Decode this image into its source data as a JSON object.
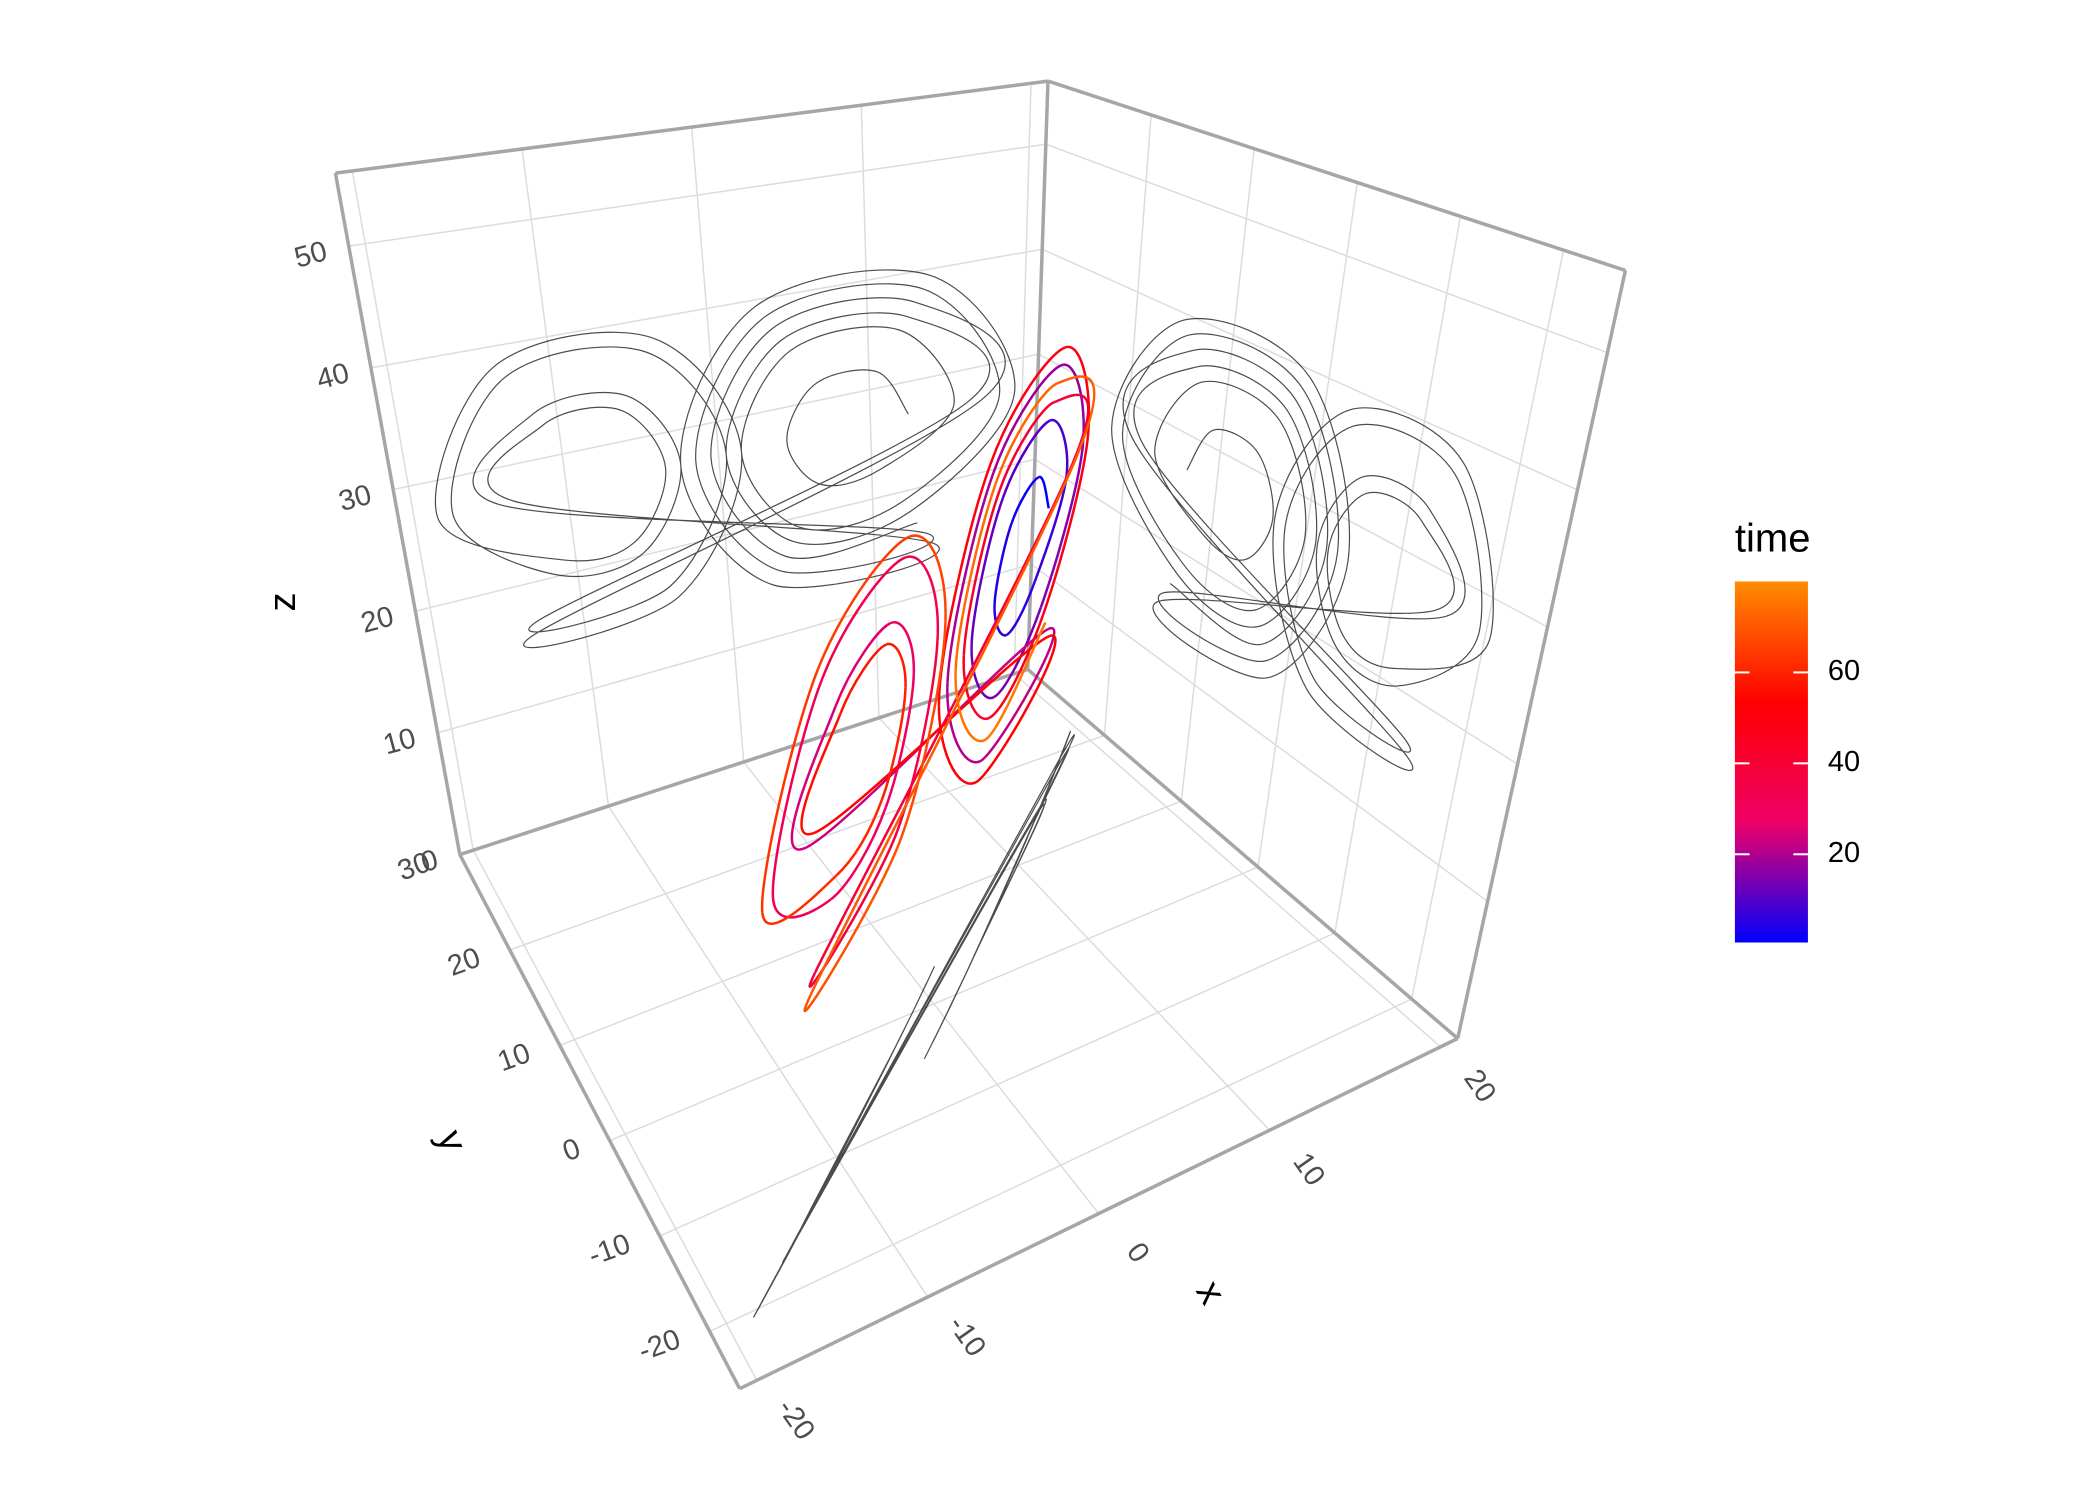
{
  "chart_data": {
    "type": "line3d",
    "x": [
      12.5,
      10.5,
      6.5,
      4.5,
      6.5,
      10.5,
      15.5,
      12,
      5,
      1.5,
      5,
      12,
      18.5,
      13.5,
      3.5,
      -1.5,
      3.5,
      13.5,
      -14.5,
      -11.5,
      -5.5,
      -2.5,
      -5.5,
      -11.5,
      -17.5,
      -13,
      -4,
      0.5,
      -4,
      -13,
      16.5,
      12.5,
      4.5,
      0.5,
      4.5,
      12.5,
      19.5,
      14,
      3,
      -2.5,
      3,
      14,
      -13.5,
      -11,
      -6,
      -3.5,
      -6,
      -11,
      -18.5,
      -13.5,
      -3.5,
      1.5,
      -3.5,
      -13.5,
      17.5,
      13,
      4,
      -0.5,
      4,
      13
    ],
    "y": [
      13.3,
      10.9,
      6.1,
      3.7,
      6.1,
      10.9,
      16.9,
      12.7,
      4.3,
      0.1,
      4.3,
      12.7,
      20.5,
      14.5,
      2.5,
      -3.5,
      2.5,
      14.5,
      -15.7,
      -12.1,
      -4.9,
      -1.3,
      -4.9,
      -12.1,
      -19.3,
      -13.9,
      -3.1,
      2.3,
      -3.1,
      -13.9,
      18.1,
      13.3,
      3.7,
      -1.1,
      3.7,
      13.3,
      21.7,
      15.1,
      1.9,
      -4.7,
      1.9,
      15.1,
      -14.5,
      -11.5,
      -5.5,
      -2.5,
      -5.5,
      -11.5,
      -20.5,
      -14.5,
      -2.5,
      3.5,
      -2.5,
      -14.5,
      19.3,
      13.9,
      3.1,
      -2.3,
      3.1,
      13.9
    ],
    "z": [
      27,
      31.5,
      31.5,
      27,
      22.5,
      22.5,
      27,
      34.9,
      34.9,
      27,
      19.1,
      19.1,
      27,
      38.3,
      38.3,
      27,
      15.7,
      15.7,
      27,
      33.8,
      33.8,
      27,
      20.2,
      20.2,
      27,
      37.2,
      37.2,
      27,
      16.8,
      16.8,
      27,
      36,
      36,
      27,
      18,
      18,
      27,
      39.4,
      39.4,
      27,
      14.6,
      14.6,
      27,
      32.7,
      32.7,
      27,
      21.3,
      21.3,
      27,
      38.3,
      38.3,
      27,
      15.7,
      15.7,
      27,
      37.2,
      37.2,
      27,
      16.8,
      16.8
    ],
    "time": [
      1,
      2.3,
      3.6,
      4.9,
      6.2,
      7.5,
      8.8,
      10.1,
      11.4,
      12.7,
      14,
      15.3,
      16.6,
      17.9,
      19.2,
      20.5,
      21.8,
      23.1,
      24.4,
      25.7,
      27,
      28.3,
      29.6,
      30.9,
      32.2,
      33.5,
      34.8,
      36.1,
      37.4,
      38.7,
      40,
      41.3,
      42.6,
      43.9,
      45.2,
      46.5,
      47.8,
      49.1,
      50.4,
      51.7,
      53,
      54.3,
      55.6,
      56.9,
      58.2,
      59.5,
      60.8,
      62.1,
      63.4,
      64.7,
      66,
      67.3,
      68.6,
      69.9,
      71.2,
      72.5,
      73.8,
      75.1,
      76.4,
      77.7
    ],
    "xlabel": "x",
    "ylabel": "y",
    "zlabel": "z",
    "xlim": [
      -21,
      21
    ],
    "ylim": [
      -26,
      30
    ],
    "zlim": [
      0,
      56
    ],
    "xticks": [
      -20,
      -10,
      0,
      10,
      20
    ],
    "yticks": [
      -20,
      -10,
      0,
      10,
      20,
      30
    ],
    "zticks": [
      0,
      10,
      20,
      30,
      40,
      50
    ],
    "grid": true,
    "shadow_color": "#000000",
    "colorbar": {
      "title": "time",
      "lim": [
        0.6,
        80
      ],
      "ticks": [
        20,
        40,
        60
      ],
      "colors": [
        "#0000ff",
        "#ee0066",
        "#ff0000",
        "#ff8c00"
      ]
    },
    "legend_position": "right"
  }
}
